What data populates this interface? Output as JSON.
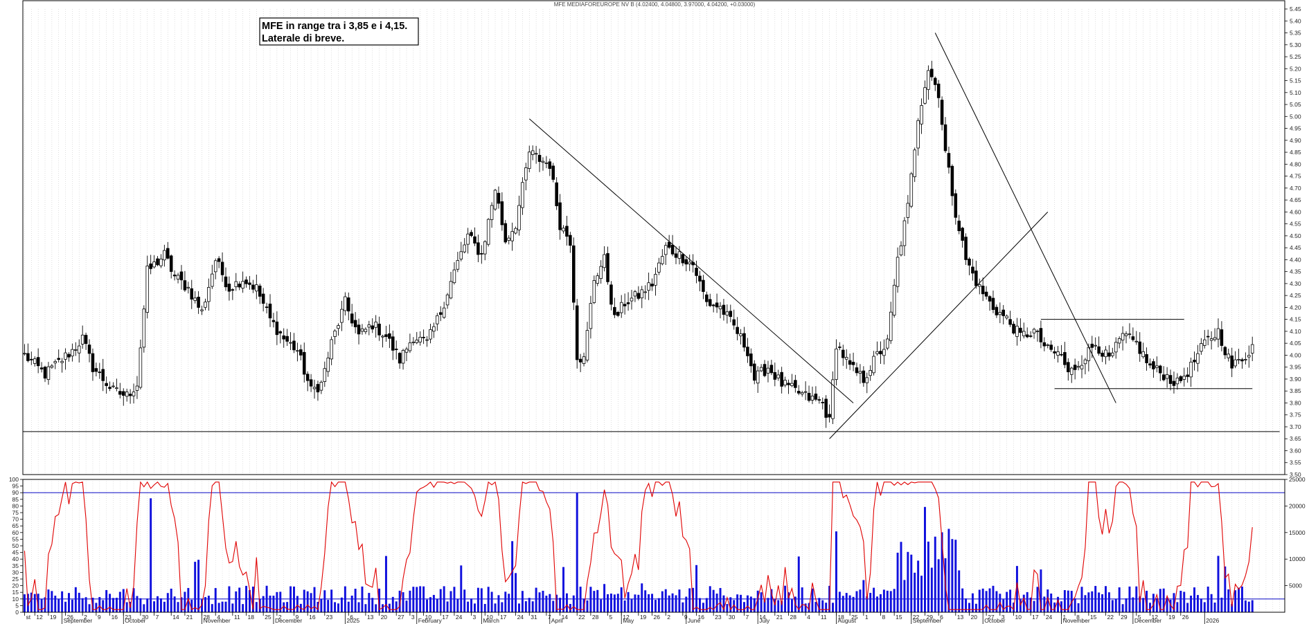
{
  "chart_data": [
    {
      "type": "candlestick",
      "title": "MFE MEDIAFOREUROPE NV B (4.02400, 4.04800, 3.97000, 4.04200, +0.03000)",
      "annotation_lines": [
        "MFE in range tra i 3,85 e i 4,15.",
        "Laterale di breve."
      ],
      "ylim": [
        3.5,
        5.45
      ],
      "y_ticks": [
        "5.45",
        "5.40",
        "5.35",
        "5.30",
        "5.25",
        "5.20",
        "5.15",
        "5.10",
        "5.05",
        "5.00",
        "4.95",
        "4.90",
        "4.85",
        "4.80",
        "4.75",
        "4.70",
        "4.65",
        "4.60",
        "4.55",
        "4.50",
        "4.45",
        "4.40",
        "4.35",
        "4.30",
        "4.25",
        "4.20",
        "4.15",
        "4.10",
        "4.05",
        "4.00",
        "3.95",
        "3.90",
        "3.85",
        "3.80",
        "3.75",
        "3.70",
        "3.65",
        "3.60",
        "3.55",
        "3.50"
      ],
      "grid": true,
      "price_anchors": [
        [
          0,
          4.0
        ],
        [
          6,
          3.92
        ],
        [
          10,
          3.97
        ],
        [
          14,
          4.02
        ],
        [
          17,
          4.07
        ],
        [
          20,
          3.95
        ],
        [
          26,
          3.85
        ],
        [
          30,
          3.83
        ],
        [
          33,
          3.88
        ],
        [
          36,
          4.35
        ],
        [
          41,
          4.42
        ],
        [
          44,
          4.33
        ],
        [
          48,
          4.28
        ],
        [
          52,
          4.18
        ],
        [
          56,
          4.4
        ],
        [
          60,
          4.28
        ],
        [
          64,
          4.32
        ],
        [
          68,
          4.28
        ],
        [
          72,
          4.15
        ],
        [
          76,
          4.07
        ],
        [
          80,
          4.02
        ],
        [
          84,
          3.85
        ],
        [
          87,
          3.88
        ],
        [
          90,
          4.05
        ],
        [
          94,
          4.22
        ],
        [
          98,
          4.08
        ],
        [
          102,
          4.13
        ],
        [
          106,
          4.08
        ],
        [
          110,
          3.98
        ],
        [
          114,
          4.08
        ],
        [
          118,
          4.05
        ],
        [
          122,
          4.18
        ],
        [
          126,
          4.35
        ],
        [
          130,
          4.5
        ],
        [
          134,
          4.42
        ],
        [
          138,
          4.7
        ],
        [
          141,
          4.48
        ],
        [
          144,
          4.55
        ],
        [
          148,
          4.85
        ],
        [
          151,
          4.82
        ],
        [
          154,
          4.8
        ],
        [
          157,
          4.55
        ],
        [
          160,
          4.48
        ],
        [
          162,
          4.0
        ],
        [
          164,
          3.98
        ],
        [
          167,
          4.32
        ],
        [
          170,
          4.4
        ],
        [
          173,
          4.15
        ],
        [
          176,
          4.22
        ],
        [
          180,
          4.25
        ],
        [
          184,
          4.3
        ],
        [
          188,
          4.45
        ],
        [
          192,
          4.42
        ],
        [
          196,
          4.38
        ],
        [
          200,
          4.22
        ],
        [
          204,
          4.2
        ],
        [
          208,
          4.12
        ],
        [
          212,
          4.02
        ],
        [
          214,
          3.9
        ],
        [
          218,
          3.95
        ],
        [
          222,
          3.88
        ],
        [
          226,
          3.85
        ],
        [
          230,
          3.82
        ],
        [
          234,
          3.8
        ],
        [
          236,
          3.72
        ],
        [
          238,
          4.05
        ],
        [
          242,
          3.95
        ],
        [
          246,
          3.9
        ],
        [
          250,
          4.0
        ],
        [
          253,
          4.05
        ],
        [
          256,
          4.4
        ],
        [
          259,
          4.62
        ],
        [
          262,
          5.0
        ],
        [
          265,
          5.2
        ],
        [
          268,
          5.1
        ],
        [
          270,
          4.85
        ],
        [
          273,
          4.6
        ],
        [
          276,
          4.4
        ],
        [
          280,
          4.28
        ],
        [
          284,
          4.2
        ],
        [
          288,
          4.15
        ],
        [
          292,
          4.08
        ],
        [
          296,
          4.1
        ],
        [
          300,
          4.02
        ],
        [
          304,
          4.0
        ],
        [
          306,
          3.92
        ],
        [
          310,
          3.98
        ],
        [
          314,
          4.05
        ],
        [
          318,
          3.98
        ],
        [
          322,
          4.08
        ],
        [
          326,
          4.05
        ],
        [
          330,
          3.95
        ],
        [
          334,
          3.92
        ],
        [
          338,
          3.88
        ],
        [
          342,
          3.95
        ],
        [
          346,
          4.05
        ],
        [
          350,
          4.1
        ],
        [
          354,
          3.95
        ],
        [
          358,
          4.0
        ],
        [
          360,
          4.04
        ]
      ],
      "trendlines": [
        {
          "from": [
            148,
            4.99
          ],
          "to": [
            243,
            3.8
          ]
        },
        {
          "from": [
            236,
            3.65
          ],
          "to": [
            300,
            4.6
          ]
        },
        {
          "from": [
            267,
            5.35
          ],
          "to": [
            320,
            3.8
          ]
        }
      ],
      "levels": [
        {
          "y": 3.68,
          "x_from": 0,
          "x_to": 368
        },
        {
          "y": 4.15,
          "x_from": 298,
          "x_to": 340
        },
        {
          "y": 3.86,
          "x_from": 302,
          "x_to": 360
        }
      ]
    },
    {
      "type": "line+bar",
      "series": [
        {
          "axis": "left",
          "ylim": [
            0,
            100
          ],
          "y_ticks": [
            "100",
            "95",
            "90",
            "85",
            "80",
            "75",
            "70",
            "65",
            "60",
            "55",
            "50",
            "45",
            "40",
            "35",
            "30",
            "25",
            "20",
            "15",
            "10",
            "5",
            "0"
          ]
        },
        {
          "axis": "right",
          "ylim": [
            0,
            25000
          ],
          "y_ticks": [
            "25000",
            "20000",
            "15000",
            "10000",
            "5000"
          ]
        }
      ],
      "levels": [
        90,
        10
      ],
      "colors": {
        "oscillator": "#e00000",
        "volume": "#1010dd",
        "levels": "#2020cc"
      }
    }
  ],
  "x_axis": {
    "months": [
      {
        "label": "September",
        "index": 11
      },
      {
        "label": "October",
        "index": 29
      },
      {
        "label": "November",
        "index": 52
      },
      {
        "label": "December",
        "index": 73
      },
      {
        "label": "2025",
        "index": 94
      },
      {
        "label": "February",
        "index": 115
      },
      {
        "label": "March",
        "index": 134
      },
      {
        "label": "April",
        "index": 154
      },
      {
        "label": "May",
        "index": 175
      },
      {
        "label": "June",
        "index": 194
      },
      {
        "label": "July",
        "index": 215
      },
      {
        "label": "August",
        "index": 238
      },
      {
        "label": "September",
        "index": 260
      },
      {
        "label": "October",
        "index": 281
      },
      {
        "label": "November",
        "index": 304
      },
      {
        "label": "December",
        "index": 325
      },
      {
        "label": "2026",
        "index": 346
      }
    ],
    "days": [
      {
        "label": "st",
        "index": 0
      },
      {
        "label": "12",
        "index": 3
      },
      {
        "label": "19",
        "index": 7
      },
      {
        "label": "26",
        "index": 12
      },
      {
        "label": "2",
        "index": 17
      },
      {
        "label": "9",
        "index": 21
      },
      {
        "label": "16",
        "index": 25
      },
      {
        "label": "23",
        "index": 29
      },
      {
        "label": "30",
        "index": 34
      },
      {
        "label": "7",
        "index": 38
      },
      {
        "label": "14",
        "index": 43
      },
      {
        "label": "21",
        "index": 47
      },
      {
        "label": "28",
        "index": 52
      },
      {
        "label": "4",
        "index": 56
      },
      {
        "label": "11",
        "index": 61
      },
      {
        "label": "18",
        "index": 65
      },
      {
        "label": "25",
        "index": 70
      },
      {
        "label": "2",
        "index": 74
      },
      {
        "label": "9",
        "index": 79
      },
      {
        "label": "16",
        "index": 83
      },
      {
        "label": "23",
        "index": 88
      },
      {
        "label": "6",
        "index": 95
      },
      {
        "label": "13",
        "index": 100
      },
      {
        "label": "20",
        "index": 104
      },
      {
        "label": "27",
        "index": 109
      },
      {
        "label": "3",
        "index": 113
      },
      {
        "label": "10",
        "index": 117
      },
      {
        "label": "17",
        "index": 122
      },
      {
        "label": "24",
        "index": 126
      },
      {
        "label": "3",
        "index": 131
      },
      {
        "label": "10",
        "index": 135
      },
      {
        "label": "17",
        "index": 139
      },
      {
        "label": "24",
        "index": 144
      },
      {
        "label": "31",
        "index": 148
      },
      {
        "label": "7",
        "index": 153
      },
      {
        "label": "14",
        "index": 157
      },
      {
        "label": "22",
        "index": 162
      },
      {
        "label": "28",
        "index": 166
      },
      {
        "label": "5",
        "index": 171
      },
      {
        "label": "12",
        "index": 175
      },
      {
        "label": "19",
        "index": 180
      },
      {
        "label": "26",
        "index": 184
      },
      {
        "label": "2",
        "index": 188
      },
      {
        "label": "9",
        "index": 193
      },
      {
        "label": "16",
        "index": 197
      },
      {
        "label": "23",
        "index": 202
      },
      {
        "label": "30",
        "index": 206
      },
      {
        "label": "7",
        "index": 211
      },
      {
        "label": "14",
        "index": 215
      },
      {
        "label": "21",
        "index": 220
      },
      {
        "label": "28",
        "index": 224
      },
      {
        "label": "4",
        "index": 229
      },
      {
        "label": "11",
        "index": 233
      },
      {
        "label": "18",
        "index": 238
      },
      {
        "label": "25",
        "index": 242
      },
      {
        "label": "1",
        "index": 246
      },
      {
        "label": "8",
        "index": 251
      },
      {
        "label": "15",
        "index": 255
      },
      {
        "label": "22",
        "index": 260
      },
      {
        "label": "29",
        "index": 264
      },
      {
        "label": "6",
        "index": 268
      },
      {
        "label": "13",
        "index": 273
      },
      {
        "label": "20",
        "index": 277
      },
      {
        "label": "27",
        "index": 282
      },
      {
        "label": "3",
        "index": 286
      },
      {
        "label": "10",
        "index": 290
      },
      {
        "label": "17",
        "index": 295
      },
      {
        "label": "24",
        "index": 299
      },
      {
        "label": "1",
        "index": 304
      },
      {
        "label": "8",
        "index": 308
      },
      {
        "label": "15",
        "index": 312
      },
      {
        "label": "22",
        "index": 317
      },
      {
        "label": "29",
        "index": 321
      },
      {
        "label": "5",
        "index": 326
      },
      {
        "label": "12",
        "index": 330
      },
      {
        "label": "19",
        "index": 335
      },
      {
        "label": "26",
        "index": 339
      }
    ],
    "count": 370
  }
}
